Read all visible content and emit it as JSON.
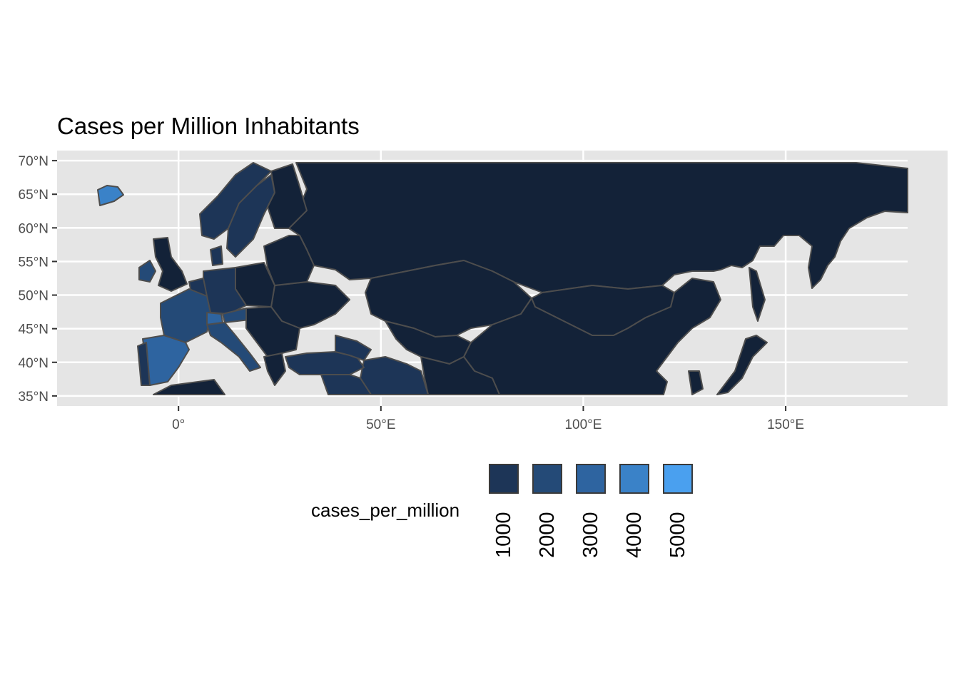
{
  "title": "Cases per Million Inhabitants",
  "axes": {
    "y_ticks": [
      {
        "value": 70,
        "label": "70°N"
      },
      {
        "value": 65,
        "label": "65°N"
      },
      {
        "value": 60,
        "label": "60°N"
      },
      {
        "value": 55,
        "label": "55°N"
      },
      {
        "value": 50,
        "label": "50°N"
      },
      {
        "value": 45,
        "label": "45°N"
      },
      {
        "value": 40,
        "label": "40°N"
      },
      {
        "value": 35,
        "label": "35°N"
      }
    ],
    "x_ticks": [
      {
        "value": 0,
        "label": "0°"
      },
      {
        "value": 50,
        "label": "50°E"
      },
      {
        "value": 100,
        "label": "100°E"
      },
      {
        "value": 150,
        "label": "150°E"
      }
    ],
    "xlim": [
      -30,
      190
    ],
    "ylim": [
      33.5,
      71.5
    ]
  },
  "legend": {
    "title": "cases_per_million",
    "position": "bottom",
    "keys": [
      {
        "label": "1000",
        "color": "#1d3557"
      },
      {
        "label": "2000",
        "color": "#244a77"
      },
      {
        "label": "3000",
        "color": "#2e64a0"
      },
      {
        "label": "4000",
        "color": "#3a82c8"
      },
      {
        "label": "5000",
        "color": "#4aa0ef"
      }
    ]
  },
  "colors": {
    "panel_background": "#e5e5e5",
    "grid": "#ffffff",
    "border": "#4d4d4d",
    "low": "#132238",
    "high": "#4aa0ef"
  }
}
